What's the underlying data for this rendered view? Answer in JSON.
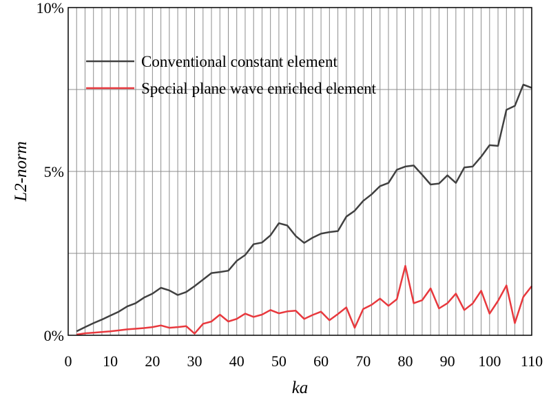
{
  "chart_data": {
    "type": "line",
    "xlabel": "ka",
    "ylabel": "L2-norm",
    "xlim": [
      0,
      110
    ],
    "ylim": [
      0,
      10
    ],
    "x_ticks": [
      0,
      10,
      20,
      30,
      40,
      50,
      60,
      70,
      80,
      90,
      100,
      110
    ],
    "y_ticks": [
      {
        "value": 0,
        "label": "0%"
      },
      {
        "value": 5,
        "label": "5%"
      },
      {
        "value": 10,
        "label": "10%"
      }
    ],
    "grid": true,
    "legend_position": "top-left",
    "series": [
      {
        "name": "Conventional constant element",
        "color": "#404040",
        "x": [
          2,
          4,
          6,
          8,
          10,
          12,
          14,
          16,
          18,
          20,
          22,
          24,
          26,
          28,
          30,
          32,
          34,
          36,
          38,
          40,
          42,
          44,
          46,
          48,
          50,
          52,
          54,
          56,
          58,
          60,
          62,
          64,
          66,
          68,
          70,
          72,
          74,
          76,
          78,
          80,
          82,
          84,
          86,
          88,
          90,
          92,
          94,
          96,
          98,
          100,
          102,
          104,
          106,
          108,
          110
        ],
        "values": [
          0.12,
          0.25,
          0.37,
          0.48,
          0.6,
          0.72,
          0.88,
          0.98,
          1.15,
          1.27,
          1.45,
          1.37,
          1.23,
          1.32,
          1.5,
          1.7,
          1.9,
          1.93,
          1.97,
          2.27,
          2.45,
          2.78,
          2.83,
          3.05,
          3.42,
          3.35,
          3.03,
          2.82,
          2.98,
          3.1,
          3.15,
          3.18,
          3.62,
          3.8,
          4.1,
          4.3,
          4.55,
          4.65,
          5.05,
          5.15,
          5.18,
          4.9,
          4.6,
          4.63,
          4.88,
          4.65,
          5.12,
          5.15,
          5.45,
          5.8,
          5.78,
          6.88,
          7.0,
          7.65,
          7.55
        ]
      },
      {
        "name": "Special plane wave enriched element",
        "color": "#e8383d",
        "x": [
          2,
          4,
          6,
          8,
          10,
          12,
          14,
          16,
          18,
          20,
          22,
          24,
          26,
          28,
          30,
          32,
          34,
          36,
          38,
          40,
          42,
          44,
          46,
          48,
          50,
          52,
          54,
          56,
          58,
          60,
          62,
          64,
          66,
          68,
          70,
          72,
          74,
          76,
          78,
          80,
          82,
          84,
          86,
          88,
          90,
          92,
          94,
          96,
          98,
          100,
          102,
          104,
          106,
          108,
          110
        ],
        "values": [
          0.02,
          0.06,
          0.08,
          0.1,
          0.12,
          0.15,
          0.18,
          0.2,
          0.22,
          0.25,
          0.3,
          0.23,
          0.25,
          0.28,
          0.05,
          0.35,
          0.42,
          0.63,
          0.42,
          0.5,
          0.66,
          0.56,
          0.63,
          0.77,
          0.67,
          0.73,
          0.75,
          0.5,
          0.62,
          0.72,
          0.46,
          0.65,
          0.85,
          0.23,
          0.8,
          0.93,
          1.12,
          0.9,
          1.1,
          2.12,
          0.98,
          1.07,
          1.43,
          0.82,
          0.98,
          1.27,
          0.77,
          0.97,
          1.36,
          0.66,
          1.05,
          1.52,
          0.37,
          1.17,
          1.5
        ]
      }
    ]
  }
}
